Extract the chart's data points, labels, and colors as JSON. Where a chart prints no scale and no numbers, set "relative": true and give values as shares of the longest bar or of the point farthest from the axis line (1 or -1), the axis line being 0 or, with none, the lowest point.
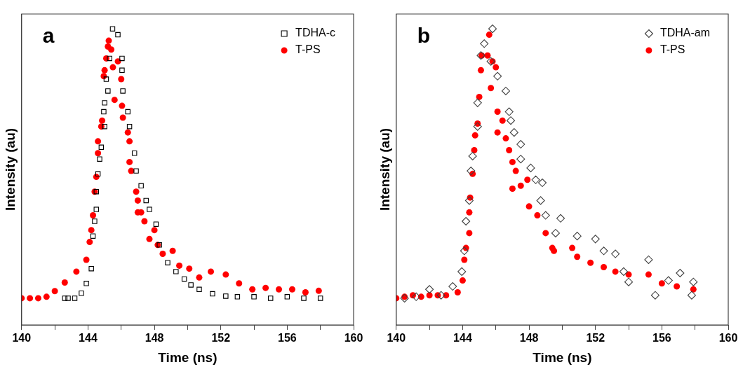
{
  "chart_data": [
    {
      "type": "scatter",
      "relative": true,
      "xlabel": "Time (ns)",
      "ylabel": "Intensity (au)",
      "annotations": [
        "a"
      ],
      "legend": "top right",
      "tick_labels": "x",
      "grid": false,
      "xlim": [
        140,
        160
      ],
      "xticks": [
        140,
        {
          "value": 142,
          "label": null
        },
        144,
        {
          "value": 146,
          "label": null
        },
        148,
        {
          "value": 150,
          "label": null
        },
        152,
        {
          "value": 154,
          "label": null
        },
        156,
        {
          "value": 158,
          "label": null
        },
        160
      ],
      "series": [
        {
          "name": "TDHA-c",
          "color": "#000000",
          "marker": "square",
          "x": [
            142.6,
            142.8,
            143.2,
            143.6,
            143.9,
            144.2,
            144.3,
            144.4,
            144.5,
            144.5,
            144.6,
            144.7,
            144.8,
            144.95,
            145.0,
            145.0,
            145.1,
            145.2,
            145.3,
            145.48,
            145.8,
            146.05,
            146.05,
            146.1,
            146.4,
            146.5,
            146.8,
            146.9,
            147.2,
            147.5,
            147.7,
            148.1,
            148.3,
            148.8,
            149.3,
            149.8,
            150.2,
            150.7,
            151.5,
            152.3,
            153.0,
            154.0,
            155.0,
            156.0,
            157.0,
            158.0
          ],
          "values": [
            0.09,
            0.09,
            0.09,
            0.107,
            0.14,
            0.19,
            0.3,
            0.35,
            0.39,
            0.45,
            0.51,
            0.56,
            0.6,
            0.72,
            0.67,
            0.75,
            0.83,
            0.79,
            0.9,
            1.0,
            0.98,
            0.9,
            0.86,
            0.79,
            0.72,
            0.67,
            0.58,
            0.52,
            0.47,
            0.42,
            0.39,
            0.34,
            0.27,
            0.21,
            0.18,
            0.155,
            0.135,
            0.12,
            0.105,
            0.097,
            0.095,
            0.095,
            0.09,
            0.095,
            0.09,
            0.09
          ]
        },
        {
          "name": "T-PS",
          "color": "#ff0000",
          "marker": "circle",
          "x": [
            140.0,
            140.5,
            141.0,
            141.5,
            142.0,
            142.6,
            143.3,
            143.9,
            144.1,
            144.2,
            144.3,
            144.4,
            144.5,
            144.6,
            144.6,
            144.8,
            144.85,
            144.95,
            145.0,
            145.1,
            145.2,
            145.25,
            145.4,
            145.5,
            145.6,
            145.8,
            146.0,
            146.05,
            146.1,
            146.4,
            146.5,
            146.5,
            146.6,
            146.9,
            147.0,
            147.0,
            147.2,
            147.4,
            147.7,
            148.0,
            148.2,
            148.5,
            149.1,
            149.5,
            150.1,
            150.7,
            151.4,
            152.3,
            153.1,
            153.9,
            154.7,
            155.5,
            156.3,
            157.1,
            157.9
          ],
          "values": [
            0.09,
            0.09,
            0.09,
            0.095,
            0.114,
            0.143,
            0.18,
            0.22,
            0.28,
            0.32,
            0.37,
            0.45,
            0.5,
            0.58,
            0.62,
            0.67,
            0.69,
            0.84,
            0.86,
            0.9,
            0.94,
            0.96,
            0.93,
            0.87,
            0.76,
            0.89,
            0.83,
            0.74,
            0.7,
            0.65,
            0.62,
            0.55,
            0.52,
            0.45,
            0.42,
            0.38,
            0.38,
            0.35,
            0.29,
            0.32,
            0.27,
            0.24,
            0.25,
            0.2,
            0.19,
            0.16,
            0.18,
            0.17,
            0.14,
            0.12,
            0.125,
            0.12,
            0.12,
            0.11,
            0.115
          ]
        }
      ]
    },
    {
      "type": "scatter",
      "relative": true,
      "xlabel": "Time (ns)",
      "ylabel": "Intensity (au)",
      "annotations": [
        "b"
      ],
      "legend": "top right",
      "tick_labels": "x",
      "grid": false,
      "xlim": [
        140,
        160
      ],
      "xticks": [
        140,
        {
          "value": 142,
          "label": null
        },
        144,
        {
          "value": 146,
          "label": null
        },
        148,
        {
          "value": 150,
          "label": null
        },
        152,
        {
          "value": 154,
          "label": null
        },
        156,
        {
          "value": 158,
          "label": null
        },
        160
      ],
      "series": [
        {
          "name": "TDHA-am",
          "color": "#404040",
          "marker": "diamond",
          "x": [
            140.5,
            141.2,
            142.0,
            142.7,
            143.4,
            143.95,
            144.1,
            144.2,
            144.4,
            144.5,
            144.6,
            144.9,
            144.9,
            145.1,
            145.3,
            145.7,
            145.8,
            146.1,
            146.6,
            146.8,
            146.9,
            147.1,
            147.5,
            147.5,
            148.1,
            148.4,
            148.7,
            148.8,
            149.0,
            149.6,
            149.9,
            150.9,
            152.0,
            152.5,
            153.2,
            153.7,
            154.0,
            155.2,
            155.6,
            156.4,
            157.1,
            157.8,
            157.9
          ],
          "values": [
            0.09,
            0.095,
            0.12,
            0.1,
            0.13,
            0.18,
            0.25,
            0.35,
            0.42,
            0.52,
            0.57,
            0.67,
            0.75,
            0.91,
            0.95,
            0.89,
            1.0,
            0.84,
            0.79,
            0.72,
            0.69,
            0.65,
            0.61,
            0.56,
            0.53,
            0.49,
            0.42,
            0.48,
            0.37,
            0.31,
            0.36,
            0.3,
            0.29,
            0.25,
            0.24,
            0.18,
            0.145,
            0.22,
            0.1,
            0.15,
            0.175,
            0.1,
            0.145
          ]
        },
        {
          "name": "T-PS",
          "color": "#ff0000",
          "marker": "circle",
          "x": [
            140.0,
            140.5,
            141.0,
            141.5,
            142.0,
            142.5,
            143.0,
            143.7,
            144.0,
            144.1,
            144.2,
            144.4,
            144.4,
            144.45,
            144.6,
            144.7,
            144.75,
            144.9,
            145.0,
            145.1,
            145.15,
            145.5,
            145.6,
            145.7,
            145.8,
            146.0,
            146.1,
            146.1,
            146.4,
            146.6,
            146.8,
            147.0,
            147.0,
            147.2,
            147.5,
            147.9,
            148.0,
            148.5,
            149.0,
            149.4,
            149.5,
            150.6,
            150.9,
            151.7,
            152.5,
            153.2,
            154.0,
            155.2,
            156.0,
            156.9,
            157.9
          ],
          "values": [
            0.09,
            0.095,
            0.1,
            0.095,
            0.1,
            0.1,
            0.1,
            0.11,
            0.15,
            0.22,
            0.26,
            0.31,
            0.38,
            0.43,
            0.51,
            0.59,
            0.64,
            0.68,
            0.77,
            0.86,
            0.91,
            0.91,
            0.98,
            0.8,
            0.89,
            0.87,
            0.72,
            0.65,
            0.69,
            0.63,
            0.59,
            0.55,
            0.46,
            0.52,
            0.47,
            0.49,
            0.4,
            0.37,
            0.31,
            0.26,
            0.25,
            0.26,
            0.23,
            0.21,
            0.195,
            0.18,
            0.17,
            0.17,
            0.14,
            0.13,
            0.12
          ]
        }
      ]
    }
  ]
}
